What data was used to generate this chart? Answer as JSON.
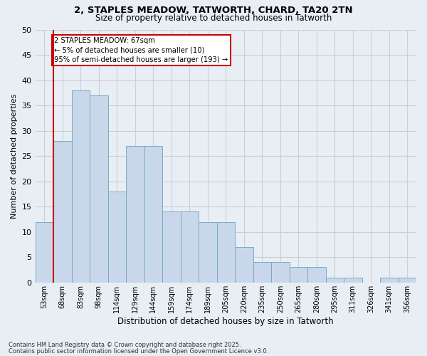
{
  "title1": "2, STAPLES MEADOW, TATWORTH, CHARD, TA20 2TN",
  "title2": "Size of property relative to detached houses in Tatworth",
  "xlabel": "Distribution of detached houses by size in Tatworth",
  "ylabel": "Number of detached properties",
  "categories": [
    "53sqm",
    "68sqm",
    "83sqm",
    "98sqm",
    "114sqm",
    "129sqm",
    "144sqm",
    "159sqm",
    "174sqm",
    "189sqm",
    "205sqm",
    "220sqm",
    "235sqm",
    "250sqm",
    "265sqm",
    "280sqm",
    "295sqm",
    "311sqm",
    "326sqm",
    "341sqm",
    "356sqm"
  ],
  "values": [
    12,
    28,
    38,
    37,
    18,
    27,
    27,
    14,
    14,
    12,
    12,
    7,
    4,
    4,
    3,
    3,
    1,
    1,
    0,
    1,
    1
  ],
  "bar_color": "#c8d8ea",
  "bar_edge_color": "#7aaac8",
  "vline_color": "#cc0000",
  "annotation_text": "2 STAPLES MEADOW: 67sqm\n← 5% of detached houses are smaller (10)\n95% of semi-detached houses are larger (193) →",
  "annotation_box_color": "#ffffff",
  "annotation_box_edge": "#cc0000",
  "grid_color": "#c8d0d8",
  "background_color": "#e8eef4",
  "footer1": "Contains HM Land Registry data © Crown copyright and database right 2025.",
  "footer2": "Contains public sector information licensed under the Open Government Licence v3.0.",
  "ylim": [
    0,
    50
  ],
  "yticks": [
    0,
    5,
    10,
    15,
    20,
    25,
    30,
    35,
    40,
    45,
    50
  ]
}
